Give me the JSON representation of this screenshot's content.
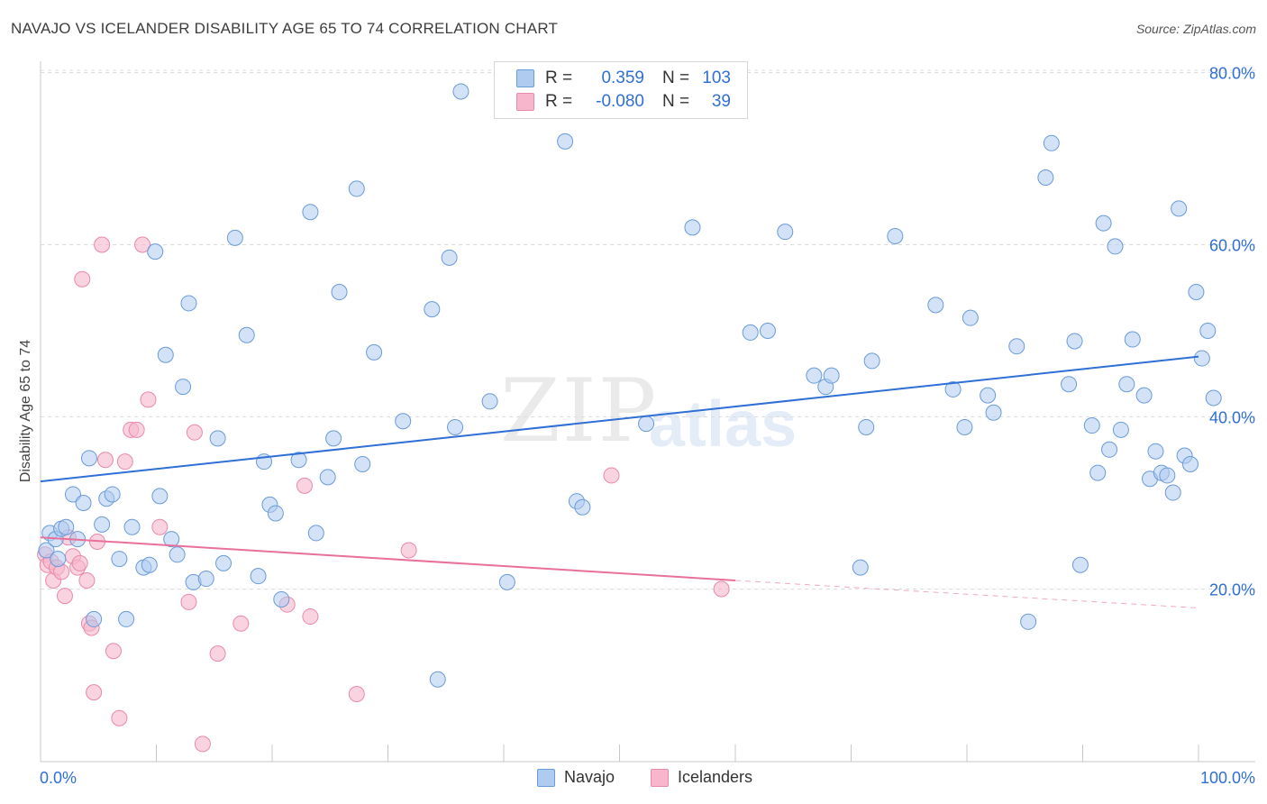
{
  "header": {
    "title": "NAVAJO VS ICELANDER DISABILITY AGE 65 TO 74 CORRELATION CHART",
    "source": "Source: ZipAtlas.com"
  },
  "watermark": {
    "zip": "ZIP",
    "atlas": "atlas"
  },
  "legend": {
    "navajo": {
      "r_label": "R =",
      "r_value": "0.359",
      "n_label": "N =",
      "n_value": "103"
    },
    "icelanders": {
      "r_label": "R =",
      "r_value": "-0.080",
      "n_label": "N =",
      "n_value": "39"
    }
  },
  "bottom_legend": {
    "navajo": "Navajo",
    "icelanders": "Icelanders"
  },
  "colors": {
    "navajo_fill": "#aecbf0",
    "navajo_stroke": "#6a9bd8",
    "navajo_line": "#2f6fd6",
    "ice_fill": "#f7b6cb",
    "ice_stroke": "#e88aa8",
    "ice_line": "#e8709a",
    "axis_text": "#2f6fd6",
    "grid": "#dcdcdc"
  },
  "chart_data": {
    "type": "scatter",
    "title": "NAVAJO VS ICELANDER DISABILITY AGE 65 TO 74 CORRELATION CHART",
    "xlabel": "",
    "ylabel": "Disability Age 65 to 74",
    "xlim": [
      0,
      100
    ],
    "ylim": [
      0,
      82
    ],
    "x_tick_labels": [
      "0.0%",
      "100.0%"
    ],
    "y_ticks": [
      20,
      40,
      60,
      80
    ],
    "y_tick_labels": [
      "20.0%",
      "40.0%",
      "60.0%",
      "80.0%"
    ],
    "grid": "horizontal dashed",
    "legend_position": "top-center",
    "series": [
      {
        "name": "Navajo",
        "trend": {
          "x0": 0,
          "y0": 32.5,
          "x1": 100,
          "y1": 47.0
        },
        "points": [
          [
            0.5,
            24.5
          ],
          [
            0.8,
            26.5
          ],
          [
            1.3,
            25.8
          ],
          [
            1.5,
            23.5
          ],
          [
            1.8,
            27.0
          ],
          [
            2.2,
            27.2
          ],
          [
            2.8,
            31.0
          ],
          [
            3.2,
            25.8
          ],
          [
            3.7,
            30.0
          ],
          [
            4.2,
            35.2
          ],
          [
            4.6,
            16.5
          ],
          [
            5.3,
            27.5
          ],
          [
            5.7,
            30.5
          ],
          [
            6.2,
            31.0
          ],
          [
            6.8,
            23.5
          ],
          [
            7.4,
            16.5
          ],
          [
            7.9,
            27.2
          ],
          [
            8.9,
            22.5
          ],
          [
            9.4,
            22.8
          ],
          [
            9.9,
            59.2
          ],
          [
            10.3,
            30.8
          ],
          [
            10.8,
            47.2
          ],
          [
            11.3,
            25.8
          ],
          [
            11.8,
            24.0
          ],
          [
            12.3,
            43.5
          ],
          [
            12.8,
            53.2
          ],
          [
            13.2,
            20.8
          ],
          [
            14.3,
            21.2
          ],
          [
            15.3,
            37.5
          ],
          [
            15.8,
            23.0
          ],
          [
            16.8,
            60.8
          ],
          [
            17.8,
            49.5
          ],
          [
            18.8,
            21.5
          ],
          [
            19.3,
            34.8
          ],
          [
            19.8,
            29.8
          ],
          [
            20.3,
            28.8
          ],
          [
            20.8,
            18.8
          ],
          [
            22.3,
            35.0
          ],
          [
            23.3,
            63.8
          ],
          [
            23.8,
            26.5
          ],
          [
            24.8,
            33.0
          ],
          [
            25.3,
            37.5
          ],
          [
            25.8,
            54.5
          ],
          [
            27.3,
            66.5
          ],
          [
            27.8,
            34.5
          ],
          [
            28.8,
            47.5
          ],
          [
            31.3,
            39.5
          ],
          [
            33.8,
            52.5
          ],
          [
            34.3,
            9.5
          ],
          [
            35.3,
            58.5
          ],
          [
            35.8,
            38.8
          ],
          [
            36.3,
            77.8
          ],
          [
            38.8,
            41.8
          ],
          [
            40.3,
            20.8
          ],
          [
            45.3,
            72.0
          ],
          [
            46.3,
            30.2
          ],
          [
            46.8,
            29.5
          ],
          [
            52.3,
            39.2
          ],
          [
            56.3,
            62.0
          ],
          [
            61.3,
            49.8
          ],
          [
            62.8,
            50.0
          ],
          [
            64.3,
            61.5
          ],
          [
            66.8,
            44.8
          ],
          [
            67.8,
            43.5
          ],
          [
            68.3,
            44.8
          ],
          [
            70.8,
            22.5
          ],
          [
            71.3,
            38.8
          ],
          [
            71.8,
            46.5
          ],
          [
            73.8,
            61.0
          ],
          [
            77.3,
            53.0
          ],
          [
            78.8,
            43.2
          ],
          [
            79.8,
            38.8
          ],
          [
            80.3,
            51.5
          ],
          [
            81.8,
            42.5
          ],
          [
            82.3,
            40.5
          ],
          [
            84.3,
            48.2
          ],
          [
            85.3,
            16.2
          ],
          [
            86.8,
            67.8
          ],
          [
            87.3,
            71.8
          ],
          [
            88.8,
            43.8
          ],
          [
            89.3,
            48.8
          ],
          [
            89.8,
            22.8
          ],
          [
            90.8,
            39.0
          ],
          [
            91.3,
            33.5
          ],
          [
            91.8,
            62.5
          ],
          [
            92.3,
            36.2
          ],
          [
            92.8,
            59.8
          ],
          [
            93.3,
            38.5
          ],
          [
            93.8,
            43.8
          ],
          [
            94.3,
            49.0
          ],
          [
            95.3,
            42.5
          ],
          [
            95.8,
            32.8
          ],
          [
            96.3,
            36.0
          ],
          [
            96.8,
            33.5
          ],
          [
            97.3,
            33.2
          ],
          [
            97.8,
            31.2
          ],
          [
            98.3,
            64.2
          ],
          [
            98.8,
            35.5
          ],
          [
            99.3,
            34.5
          ],
          [
            99.8,
            54.5
          ],
          [
            100.3,
            46.8
          ],
          [
            100.8,
            50.0
          ],
          [
            101.3,
            42.2
          ]
        ]
      },
      {
        "name": "Icelanders",
        "trend": {
          "x0": 0,
          "y0": 26.0,
          "x1": 60,
          "y1": 21.0,
          "dash_to": {
            "x": 100,
            "y": 17.8
          }
        },
        "points": [
          [
            0.4,
            24.0
          ],
          [
            0.6,
            22.8
          ],
          [
            0.9,
            23.2
          ],
          [
            1.1,
            21.0
          ],
          [
            1.4,
            22.5
          ],
          [
            1.8,
            22.0
          ],
          [
            2.1,
            19.2
          ],
          [
            2.4,
            26.0
          ],
          [
            2.8,
            23.8
          ],
          [
            3.2,
            22.5
          ],
          [
            3.4,
            23.0
          ],
          [
            3.6,
            56.0
          ],
          [
            4.0,
            21.0
          ],
          [
            4.2,
            16.0
          ],
          [
            4.4,
            15.5
          ],
          [
            4.6,
            8.0
          ],
          [
            4.9,
            25.5
          ],
          [
            5.3,
            60.0
          ],
          [
            5.6,
            35.0
          ],
          [
            6.3,
            12.8
          ],
          [
            6.8,
            5.0
          ],
          [
            7.3,
            34.8
          ],
          [
            7.8,
            38.5
          ],
          [
            8.3,
            38.5
          ],
          [
            8.8,
            60.0
          ],
          [
            9.3,
            42.0
          ],
          [
            10.3,
            27.2
          ],
          [
            12.8,
            18.5
          ],
          [
            13.3,
            38.2
          ],
          [
            14.0,
            2.0
          ],
          [
            15.3,
            12.5
          ],
          [
            17.3,
            16.0
          ],
          [
            21.3,
            18.2
          ],
          [
            22.8,
            32.0
          ],
          [
            23.3,
            16.8
          ],
          [
            27.3,
            7.8
          ],
          [
            31.8,
            24.5
          ],
          [
            49.3,
            33.2
          ],
          [
            58.8,
            20.0
          ]
        ]
      }
    ]
  }
}
